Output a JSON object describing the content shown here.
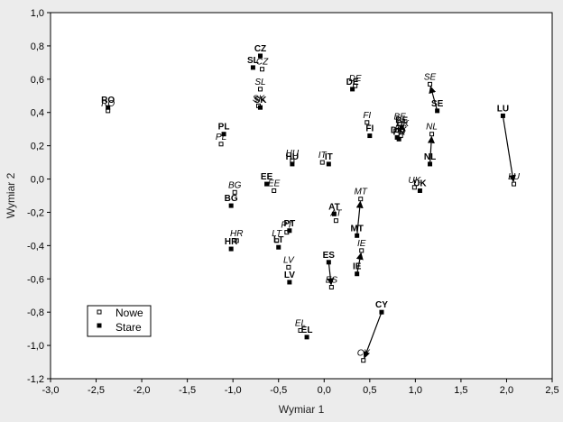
{
  "chart_data": {
    "type": "scatter",
    "title": "",
    "xlabel": "Wymiar 1",
    "ylabel": "Wymiar 2",
    "xlim": [
      -3.0,
      2.5
    ],
    "ylim": [
      -1.2,
      1.0
    ],
    "xticks": [
      "-3,0",
      "-2,5",
      "-2,0",
      "-1,5",
      "-1,0",
      "-0,5",
      "0,0",
      "0,5",
      "1,0",
      "1,5",
      "2,0",
      "2,5"
    ],
    "yticks": [
      "1,0",
      "0,8",
      "0,6",
      "0,4",
      "0,2",
      "0,0",
      "-0,2",
      "-0,4",
      "-0,6",
      "-0,8",
      "-1,0",
      "-1,2"
    ],
    "grid": false,
    "legend_position": "bottom-left",
    "series": [
      {
        "name": "Nowe",
        "marker": "open-square",
        "points": [
          {
            "label": "RO",
            "x": -2.37,
            "y": 0.41
          },
          {
            "label": "CZ",
            "x": -0.68,
            "y": 0.66
          },
          {
            "label": "SL",
            "x": -0.7,
            "y": 0.54
          },
          {
            "label": "SK",
            "x": -0.72,
            "y": 0.44
          },
          {
            "label": "PL",
            "x": -1.13,
            "y": 0.21
          },
          {
            "label": "HU",
            "x": -0.35,
            "y": 0.11
          },
          {
            "label": "EE",
            "x": -0.55,
            "y": -0.07
          },
          {
            "label": "BG",
            "x": -0.98,
            "y": -0.08
          },
          {
            "label": "LT",
            "x": -0.52,
            "y": -0.37
          },
          {
            "label": "HR",
            "x": -0.96,
            "y": -0.37
          },
          {
            "label": "LV",
            "x": -0.39,
            "y": -0.53
          },
          {
            "label": "CY",
            "x": 0.43,
            "y": -1.09
          },
          {
            "label": "MT",
            "x": 0.4,
            "y": -0.12
          },
          {
            "label": "ES",
            "x": 0.08,
            "y": -0.65
          },
          {
            "label": "IE",
            "x": 0.41,
            "y": -0.43
          },
          {
            "label": "AT",
            "x": 0.13,
            "y": -0.25
          },
          {
            "label": "PT",
            "x": -0.41,
            "y": -0.32
          },
          {
            "label": "IT",
            "x": -0.02,
            "y": 0.1
          },
          {
            "label": "DE",
            "x": 0.34,
            "y": 0.56
          },
          {
            "label": "FI",
            "x": 0.47,
            "y": 0.34
          },
          {
            "label": "BE",
            "x": 0.83,
            "y": 0.33
          },
          {
            "label": "DK",
            "x": 0.86,
            "y": 0.29
          },
          {
            "label": "FR",
            "x": 0.84,
            "y": 0.26
          },
          {
            "label": "NL",
            "x": 1.18,
            "y": 0.27
          },
          {
            "label": "SE",
            "x": 1.16,
            "y": 0.57
          },
          {
            "label": "UK",
            "x": 0.99,
            "y": -0.05
          },
          {
            "label": "LU",
            "x": 2.08,
            "y": -0.03
          },
          {
            "label": "EL",
            "x": -0.26,
            "y": -0.91
          }
        ]
      },
      {
        "name": "Stare",
        "marker": "filled-square",
        "points": [
          {
            "label": "RO",
            "x": -2.37,
            "y": 0.43
          },
          {
            "label": "CZ",
            "x": -0.7,
            "y": 0.74
          },
          {
            "label": "SL",
            "x": -0.78,
            "y": 0.67
          },
          {
            "label": "SK",
            "x": -0.7,
            "y": 0.43
          },
          {
            "label": "PL",
            "x": -1.1,
            "y": 0.27
          },
          {
            "label": "HU",
            "x": -0.35,
            "y": 0.09
          },
          {
            "label": "EE",
            "x": -0.63,
            "y": -0.03
          },
          {
            "label": "BG",
            "x": -1.02,
            "y": -0.16
          },
          {
            "label": "LT",
            "x": -0.5,
            "y": -0.41
          },
          {
            "label": "HR",
            "x": -1.02,
            "y": -0.42
          },
          {
            "label": "LV",
            "x": -0.38,
            "y": -0.62
          },
          {
            "label": "CY",
            "x": 0.63,
            "y": -0.8
          },
          {
            "label": "MT",
            "x": 0.36,
            "y": -0.34
          },
          {
            "label": "ES",
            "x": 0.05,
            "y": -0.5
          },
          {
            "label": "IE",
            "x": 0.36,
            "y": -0.57
          },
          {
            "label": "AT",
            "x": 0.11,
            "y": -0.21
          },
          {
            "label": "PT",
            "x": -0.38,
            "y": -0.31
          },
          {
            "label": "IT",
            "x": 0.05,
            "y": 0.09
          },
          {
            "label": "DE",
            "x": 0.31,
            "y": 0.54
          },
          {
            "label": "FI",
            "x": 0.5,
            "y": 0.26
          },
          {
            "label": "BE",
            "x": 0.85,
            "y": 0.31
          },
          {
            "label": "DK",
            "x": 0.8,
            "y": 0.25
          },
          {
            "label": "FR",
            "x": 0.82,
            "y": 0.24
          },
          {
            "label": "NL",
            "x": 1.16,
            "y": 0.09
          },
          {
            "label": "SE",
            "x": 1.24,
            "y": 0.41
          },
          {
            "label": "UK",
            "x": 1.05,
            "y": -0.07
          },
          {
            "label": "LU",
            "x": 1.96,
            "y": 0.38
          },
          {
            "label": "EL",
            "x": -0.19,
            "y": -0.95
          }
        ]
      }
    ],
    "arrows": [
      {
        "from": "CY",
        "x1": 0.63,
        "y1": -0.8,
        "x2": 0.43,
        "y2": -1.09
      },
      {
        "from": "LU",
        "x1": 1.96,
        "y1": 0.38,
        "x2": 2.08,
        "y2": -0.03
      },
      {
        "from": "MT",
        "x1": 0.36,
        "y1": -0.34,
        "x2": 0.4,
        "y2": -0.12
      },
      {
        "from": "IE",
        "x1": 0.36,
        "y1": -0.57,
        "x2": 0.41,
        "y2": -0.43
      },
      {
        "from": "ES",
        "x1": 0.05,
        "y1": -0.5,
        "x2": 0.08,
        "y2": -0.65
      },
      {
        "from": "NL",
        "x1": 1.16,
        "y1": 0.09,
        "x2": 1.18,
        "y2": 0.27
      },
      {
        "from": "SE",
        "x1": 1.24,
        "y1": 0.41,
        "x2": 1.16,
        "y2": 0.57
      }
    ]
  }
}
